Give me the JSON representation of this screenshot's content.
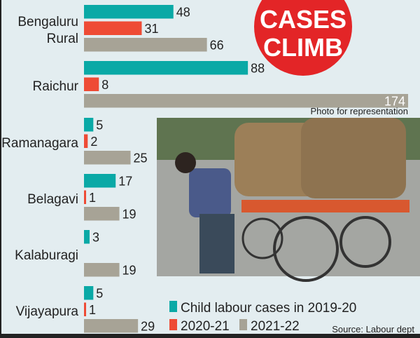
{
  "badge": {
    "line1": "CASES",
    "line2": "CLIMB"
  },
  "photo_caption": "Photo for representation",
  "source": "Source: Labour dept",
  "colors": {
    "2019-20": "#0aa9a6",
    "2020-21": "#ee4b35",
    "2021-22": "#a7a396",
    "badge": "#e32527",
    "background": "#e3edf0"
  },
  "chart_data": {
    "type": "bar",
    "orientation": "horizontal",
    "categories": [
      "Bengaluru Rural",
      "Raichur",
      "Ramanagara",
      "Belagavi",
      "Kalaburagi",
      "Vijayapura"
    ],
    "category_lines": [
      [
        "Bengaluru",
        "Rural"
      ],
      [
        "Raichur"
      ],
      [
        "Ramanagara"
      ],
      [
        "Belagavi"
      ],
      [
        "Kalaburagi"
      ],
      [
        "Vijayapura"
      ]
    ],
    "series": [
      {
        "name": "Child labour cases in 2019-20",
        "values": [
          48,
          88,
          5,
          17,
          3,
          5
        ]
      },
      {
        "name": "2020-21",
        "values": [
          31,
          8,
          2,
          1,
          null,
          1
        ]
      },
      {
        "name": "2021-22",
        "values": [
          66,
          174,
          25,
          19,
          19,
          29
        ]
      }
    ],
    "xlim": [
      0,
      174
    ],
    "grid": false,
    "legend_placement": "bottom-right"
  }
}
